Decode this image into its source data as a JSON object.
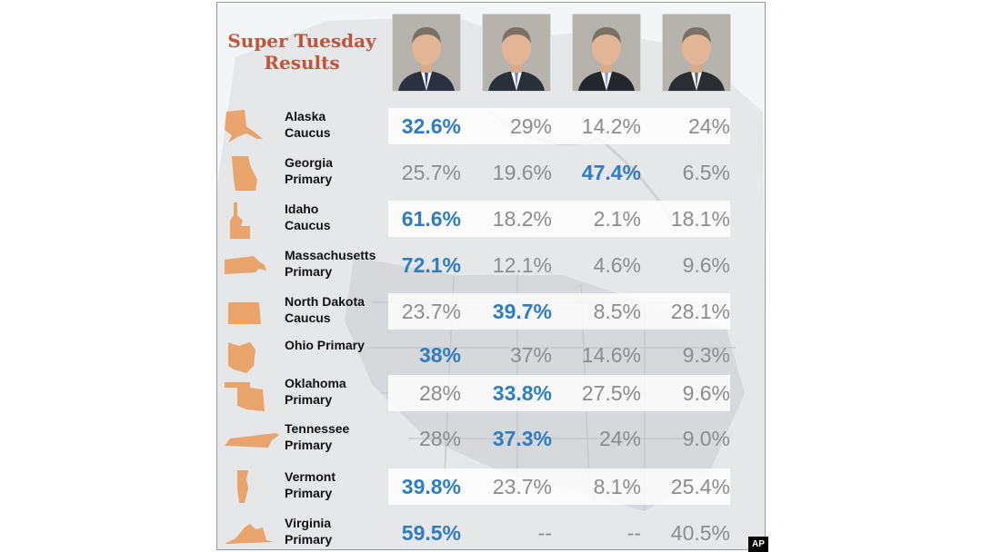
{
  "title_line1": "Super Tuesday",
  "title_line2": "Results",
  "badge": "AP",
  "colors": {
    "title": "#c0553a",
    "winner": "#2f7dc0",
    "value": "#8c8c8c",
    "state_shape": "#e8a46a",
    "map": "#dedfe1"
  },
  "candidates": [
    {
      "icon": "candidate-1-portrait",
      "suit": "#2b3140",
      "tie": "#2e4a8a"
    },
    {
      "icon": "candidate-2-portrait",
      "suit": "#2a2f3a",
      "tie": "#7a8db0"
    },
    {
      "icon": "candidate-3-portrait",
      "suit": "#23262c",
      "tie": "#8aa2c8"
    },
    {
      "icon": "candidate-4-portrait",
      "suit": "#2c2d33",
      "tie": "#6a6a78"
    }
  ],
  "chart_data": {
    "type": "table",
    "title": "Super Tuesday Results",
    "rows": [
      {
        "line1": "Alaska",
        "line2": "Caucus",
        "shape": "alaska-icon",
        "values": [
          "32.6%",
          "29%",
          "14.2%",
          "24%"
        ],
        "winner": 0
      },
      {
        "line1": "Georgia",
        "line2": "Primary",
        "shape": "georgia-icon",
        "values": [
          "25.7%",
          "19.6%",
          "47.4%",
          "6.5%"
        ],
        "winner": 2
      },
      {
        "line1": "Idaho",
        "line2": "Caucus",
        "shape": "idaho-icon",
        "values": [
          "61.6%",
          "18.2%",
          "2.1%",
          "18.1%"
        ],
        "winner": 0
      },
      {
        "line1": "Massachusetts",
        "line2": "Primary",
        "shape": "massachusetts-icon",
        "values": [
          "72.1%",
          "12.1%",
          "4.6%",
          "9.6%"
        ],
        "winner": 0
      },
      {
        "line1": "North Dakota",
        "line2": "Caucus",
        "shape": "north-dakota-icon",
        "values": [
          "23.7%",
          "39.7%",
          "8.5%",
          "28.1%"
        ],
        "winner": 1
      },
      {
        "line1": "Ohio Primary",
        "line2": "",
        "shape": "ohio-icon",
        "values": [
          "38%",
          "37%",
          "14.6%",
          "9.3%"
        ],
        "winner": 0
      },
      {
        "line1": "Oklahoma",
        "line2": "Primary",
        "shape": "oklahoma-icon",
        "values": [
          "28%",
          "33.8%",
          "27.5%",
          "9.6%"
        ],
        "winner": 1
      },
      {
        "line1": "Tennessee",
        "line2": "Primary",
        "shape": "tennessee-icon",
        "values": [
          "28%",
          "37.3%",
          "24%",
          "9.0%"
        ],
        "winner": 1
      },
      {
        "line1": "Vermont",
        "line2": "Primary",
        "shape": "vermont-icon",
        "values": [
          "39.8%",
          "23.7%",
          "8.1%",
          "25.4%"
        ],
        "winner": 0
      },
      {
        "line1": "Virginia",
        "line2": "Primary",
        "shape": "virginia-icon",
        "values": [
          "59.5%",
          "--",
          "--",
          "40.5%"
        ],
        "winner": 0
      }
    ]
  }
}
